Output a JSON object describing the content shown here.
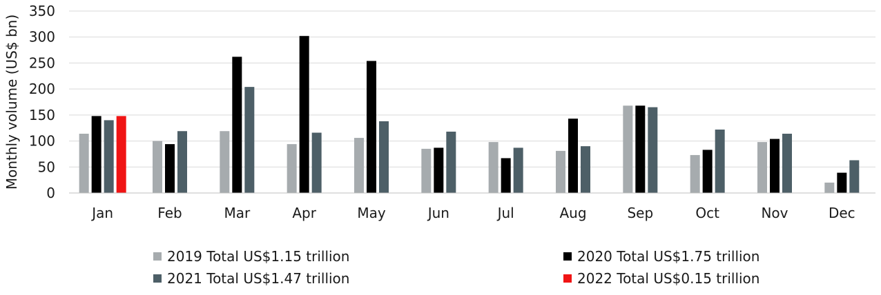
{
  "chart_data": {
    "type": "bar",
    "title": "",
    "xlabel": "",
    "ylabel": "Monthly volume (US$ bn)",
    "ylim": [
      0,
      350
    ],
    "yticks": [
      "0",
      "50",
      "100",
      "150",
      "200",
      "250",
      "300",
      "350"
    ],
    "grid": true,
    "legend_position": "bottom",
    "categories": [
      "Jan",
      "Feb",
      "Mar",
      "Apr",
      "May",
      "Jun",
      "Jul",
      "Aug",
      "Sep",
      "Oct",
      "Nov",
      "Dec"
    ],
    "series": [
      {
        "name": "2019 Total US$1.15 trillion",
        "color": "#a6abae",
        "values": [
          114,
          100,
          119,
          94,
          106,
          85,
          98,
          81,
          168,
          73,
          98,
          20
        ]
      },
      {
        "name": "2020 Total US$1.75 trillion",
        "color": "#000000",
        "values": [
          148,
          94,
          262,
          302,
          254,
          87,
          67,
          143,
          168,
          83,
          104,
          39
        ]
      },
      {
        "name": "2021 Total US$1.47 trillion",
        "color": "#4d5f67",
        "values": [
          140,
          119,
          204,
          116,
          138,
          118,
          87,
          90,
          165,
          122,
          114,
          63
        ]
      },
      {
        "name": "2022 Total US$0.15 trillion",
        "color": "#f01414",
        "values": [
          148,
          null,
          null,
          null,
          null,
          null,
          null,
          null,
          null,
          null,
          null,
          null
        ]
      }
    ]
  }
}
